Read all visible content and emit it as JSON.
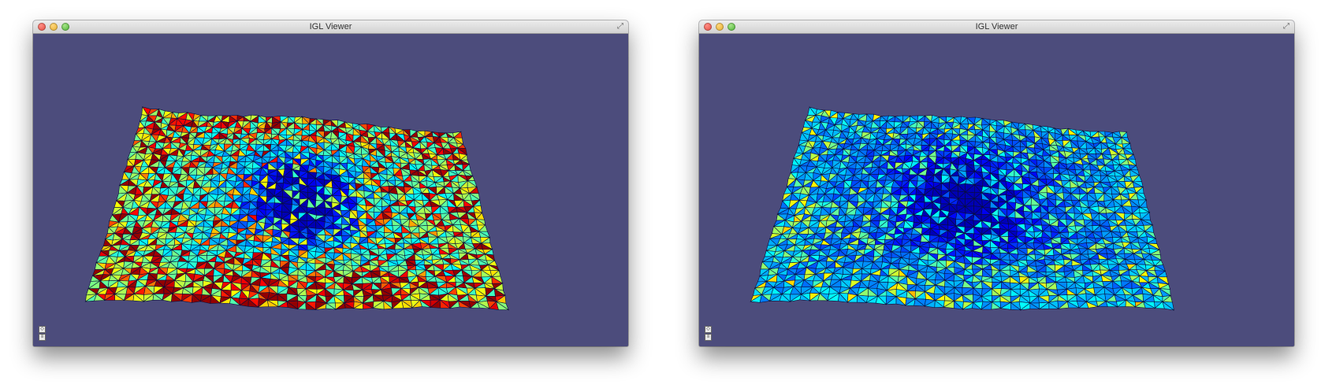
{
  "windows": [
    {
      "title": "IGL Viewer",
      "colormap": "jet",
      "intensity": "high",
      "controls": [
        "zoom-icon",
        "settings-icon"
      ]
    },
    {
      "title": "IGL Viewer",
      "colormap": "jet",
      "intensity": "low",
      "controls": [
        "zoom-icon",
        "settings-icon"
      ]
    }
  ],
  "colors": {
    "background": "#4c4c7c",
    "mesh_base": "#1a2cc8",
    "mesh_edge": "#0a0f3a"
  }
}
